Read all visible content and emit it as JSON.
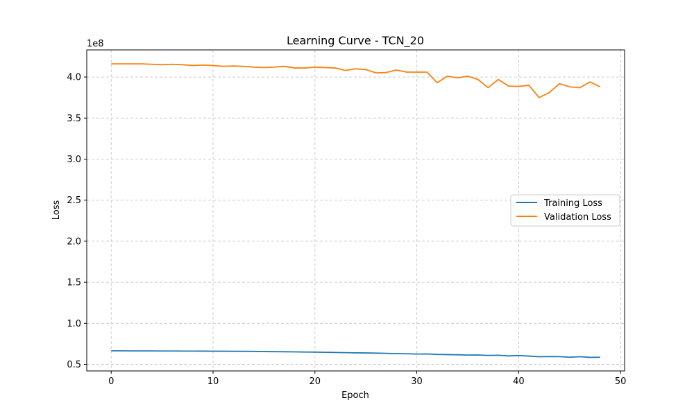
{
  "chart_data": {
    "type": "line",
    "title": "Learning Curve - TCN_20",
    "xlabel": "Epoch",
    "ylabel": "Loss",
    "y_offset_label": "1e8",
    "xlim": [
      -2.4,
      50.4
    ],
    "ylim": [
      0.42,
      4.33
    ],
    "y_units_scale": 100000000,
    "x_ticks": [
      0,
      10,
      20,
      30,
      40,
      50
    ],
    "y_ticks": [
      0.5,
      1.0,
      1.5,
      2.0,
      2.5,
      3.0,
      3.5,
      4.0
    ],
    "y_tick_labels": [
      "0.5",
      "1.0",
      "1.5",
      "2.0",
      "2.5",
      "3.0",
      "3.5",
      "4.0"
    ],
    "grid": true,
    "legend_position": "center-right",
    "x": [
      0,
      1,
      2,
      3,
      4,
      5,
      6,
      7,
      8,
      9,
      10,
      11,
      12,
      13,
      14,
      15,
      16,
      17,
      18,
      19,
      20,
      21,
      22,
      23,
      24,
      25,
      26,
      27,
      28,
      29,
      30,
      31,
      32,
      33,
      34,
      35,
      36,
      37,
      38,
      39,
      40,
      41,
      42,
      43,
      44,
      45,
      46,
      47,
      48
    ],
    "series": [
      {
        "name": "Training Loss",
        "color": "#1f77b4",
        "values": [
          0.665,
          0.665,
          0.664,
          0.664,
          0.664,
          0.663,
          0.663,
          0.662,
          0.662,
          0.661,
          0.66,
          0.66,
          0.659,
          0.659,
          0.658,
          0.656,
          0.655,
          0.654,
          0.652,
          0.65,
          0.649,
          0.647,
          0.645,
          0.643,
          0.64,
          0.639,
          0.637,
          0.634,
          0.631,
          0.629,
          0.626,
          0.627,
          0.621,
          0.619,
          0.617,
          0.613,
          0.614,
          0.609,
          0.611,
          0.603,
          0.608,
          0.601,
          0.593,
          0.595,
          0.594,
          0.587,
          0.593,
          0.585,
          0.587
        ]
      },
      {
        "name": "Validation Loss",
        "color": "#ff7f0e",
        "values": [
          4.16,
          4.16,
          4.16,
          4.16,
          4.155,
          4.15,
          4.155,
          4.15,
          4.14,
          4.145,
          4.14,
          4.13,
          4.135,
          4.13,
          4.12,
          4.115,
          4.12,
          4.13,
          4.11,
          4.11,
          4.12,
          4.115,
          4.11,
          4.08,
          4.1,
          4.09,
          4.05,
          4.055,
          4.085,
          4.06,
          4.06,
          4.06,
          3.93,
          4.01,
          3.99,
          4.01,
          3.97,
          3.87,
          3.97,
          3.89,
          3.885,
          3.9,
          3.75,
          3.81,
          3.92,
          3.88,
          3.87,
          3.94,
          3.88
        ]
      }
    ]
  }
}
